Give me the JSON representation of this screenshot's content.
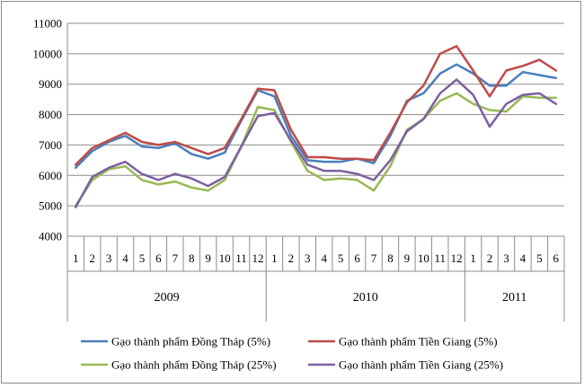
{
  "chart_data": {
    "type": "line",
    "title": "",
    "xlabel": "",
    "ylabel": "",
    "ylim": [
      4000,
      11000
    ],
    "yticks": [
      4000,
      5000,
      6000,
      7000,
      8000,
      9000,
      10000,
      11000
    ],
    "grid": "horizontal",
    "legend_position": "bottom",
    "x": [
      "1",
      "2",
      "3",
      "4",
      "5",
      "6",
      "7",
      "8",
      "9",
      "10",
      "11",
      "12",
      "1",
      "2",
      "3",
      "4",
      "5",
      "6",
      "7",
      "8",
      "9",
      "10",
      "11",
      "12",
      "1",
      "2",
      "3",
      "4",
      "5",
      "6"
    ],
    "years": [
      {
        "label": "2009",
        "start": 0,
        "count": 12
      },
      {
        "label": "2010",
        "start": 12,
        "count": 12
      },
      {
        "label": "2011",
        "start": 24,
        "count": 6
      }
    ],
    "series": [
      {
        "name": "Gạo thành phẩm Đồng Tháp (5%)",
        "color": "#4a7ebb",
        "values": [
          6250,
          6800,
          7100,
          7300,
          6950,
          6900,
          7050,
          6700,
          6550,
          6750,
          7800,
          8800,
          8600,
          7300,
          6500,
          6450,
          6450,
          6550,
          6400,
          7300,
          8450,
          8700,
          9350,
          9650,
          9350,
          8950,
          8950,
          9400,
          9300,
          9200
        ]
      },
      {
        "name": "Gạo thành phẩm Tiền Giang (5%)",
        "color": "#be4b48",
        "values": [
          6350,
          6900,
          7150,
          7400,
          7100,
          7000,
          7100,
          6900,
          6700,
          6900,
          7850,
          8850,
          8800,
          7500,
          6600,
          6600,
          6550,
          6550,
          6500,
          7400,
          8400,
          8950,
          10000,
          10250,
          9450,
          8600,
          9450,
          9600,
          9800,
          9450
        ]
      },
      {
        "name": "Gạo thành phẩm Đồng Tháp (25%)",
        "color": "#98b954",
        "values": [
          5000,
          5850,
          6200,
          6300,
          5850,
          5700,
          5800,
          5600,
          5500,
          5850,
          6950,
          8250,
          8150,
          7100,
          6150,
          5850,
          5900,
          5850,
          5500,
          6300,
          7500,
          7850,
          8450,
          8700,
          8350,
          8150,
          8100,
          8600,
          8550,
          8550
        ]
      },
      {
        "name": "Gạo thành phẩm Tiền Giang (25%)",
        "color": "#7d60a0",
        "values": [
          4950,
          5950,
          6250,
          6450,
          6050,
          5850,
          6050,
          5900,
          5650,
          5950,
          6950,
          7950,
          8050,
          7150,
          6350,
          6150,
          6150,
          6050,
          5850,
          6500,
          7450,
          7850,
          8700,
          9150,
          8650,
          7600,
          8350,
          8650,
          8700,
          8350
        ]
      }
    ]
  }
}
